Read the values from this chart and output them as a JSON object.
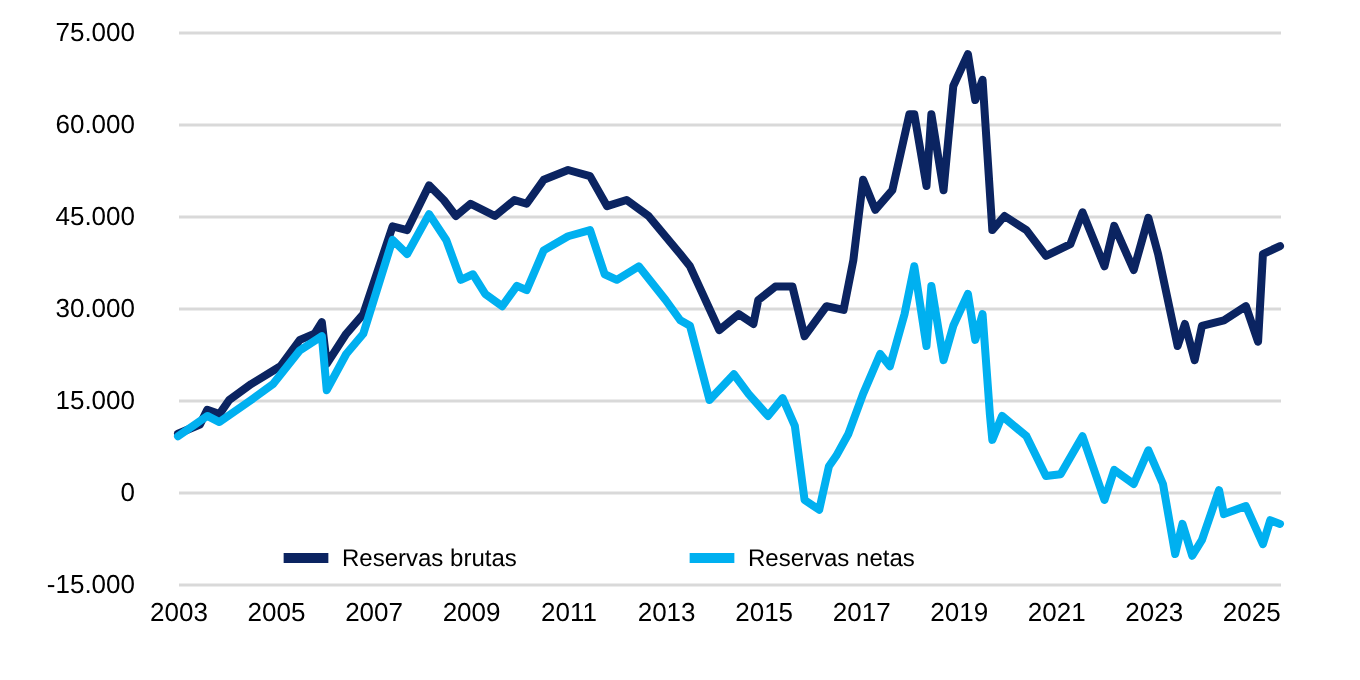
{
  "chart_data": {
    "type": "line",
    "series": [
      {
        "name": "Reservas brutas",
        "color": "#0b2461",
        "x": [
          2003.0,
          2003.45,
          2003.6,
          2003.85,
          2004.05,
          2004.5,
          2005.1,
          2005.5,
          2005.8,
          2005.95,
          2006.05,
          2006.45,
          2006.8,
          2007.4,
          2007.7,
          2008.15,
          2008.45,
          2008.7,
          2009.0,
          2009.5,
          2009.9,
          2010.15,
          2010.5,
          2011.0,
          2011.45,
          2011.8,
          2012.2,
          2012.65,
          2013.3,
          2013.5,
          2014.1,
          2014.5,
          2014.8,
          2014.9,
          2015.25,
          2015.6,
          2015.85,
          2016.3,
          2016.65,
          2016.85,
          2017.05,
          2017.3,
          2017.65,
          2018.0,
          2018.1,
          2018.35,
          2018.45,
          2018.7,
          2018.9,
          2019.2,
          2019.35,
          2019.5,
          2019.7,
          2019.95,
          2020.4,
          2020.8,
          2021.3,
          2021.55,
          2022.0,
          2022.2,
          2022.6,
          2022.9,
          2023.1,
          2023.5,
          2023.65,
          2023.85,
          2024.0,
          2024.45,
          2024.9,
          2025.15,
          2025.25,
          2025.6
        ],
        "values": [
          9500,
          11000,
          13400,
          12700,
          15000,
          17600,
          20500,
          24800,
          25800,
          27700,
          20900,
          25800,
          29000,
          43300,
          42700,
          50000,
          47600,
          45000,
          47000,
          45000,
          47600,
          47000,
          50900,
          52500,
          51500,
          46600,
          47600,
          45000,
          38800,
          36800,
          26400,
          29000,
          27400,
          31300,
          33500,
          33500,
          25400,
          30300,
          29700,
          37800,
          50900,
          46000,
          49200,
          61600,
          61600,
          49900,
          61600,
          49200,
          66200,
          71400,
          63900,
          67200,
          42700,
          45000,
          42700,
          38500,
          40400,
          45600,
          36800,
          43400,
          36200,
          44700,
          38800,
          23800,
          27400,
          21500,
          27100,
          28000,
          30300,
          24500,
          38800,
          40100
        ]
      },
      {
        "name": "Reservas netas",
        "color": "#00b0f0",
        "x": [
          2003.0,
          2003.6,
          2003.85,
          2004.5,
          2004.95,
          2005.5,
          2005.95,
          2006.05,
          2006.45,
          2006.8,
          2007.4,
          2007.7,
          2008.15,
          2008.5,
          2008.8,
          2009.05,
          2009.3,
          2009.65,
          2009.95,
          2010.15,
          2010.5,
          2011.0,
          2011.45,
          2011.75,
          2012.0,
          2012.45,
          2013.0,
          2013.3,
          2013.5,
          2013.9,
          2014.4,
          2014.7,
          2015.1,
          2015.4,
          2015.65,
          2015.85,
          2016.15,
          2016.35,
          2016.5,
          2016.75,
          2017.05,
          2017.4,
          2017.6,
          2017.9,
          2018.1,
          2018.35,
          2018.45,
          2018.7,
          2018.9,
          2019.2,
          2019.35,
          2019.5,
          2019.65,
          2019.7,
          2019.9,
          2020.4,
          2020.8,
          2021.1,
          2021.55,
          2022.0,
          2022.2,
          2022.6,
          2022.9,
          2023.2,
          2023.45,
          2023.6,
          2023.8,
          2024.0,
          2024.35,
          2024.45,
          2024.9,
          2025.25,
          2025.4,
          2025.6
        ],
        "values": [
          9100,
          12400,
          11400,
          15000,
          17600,
          23100,
          25400,
          16600,
          22500,
          25800,
          41100,
          38800,
          45300,
          41100,
          34600,
          35500,
          32300,
          30300,
          33600,
          32900,
          39400,
          41700,
          42700,
          35500,
          34600,
          36800,
          31300,
          28000,
          27100,
          15000,
          19200,
          16000,
          12400,
          15300,
          10800,
          -1300,
          -2900,
          4200,
          5900,
          9500,
          16000,
          22500,
          20500,
          29000,
          36800,
          23800,
          33600,
          21500,
          27100,
          32300,
          24800,
          29000,
          12700,
          8500,
          12400,
          9100,
          2600,
          2900,
          9100,
          -1300,
          3600,
          1300,
          6800,
          1300,
          -10100,
          -5200,
          -10400,
          -7800,
          300,
          -3600,
          -2300,
          -8500,
          -4600,
          -5200
        ]
      }
    ],
    "xlim": [
      2003,
      2025.6
    ],
    "xticks": [
      2003,
      2005,
      2007,
      2009,
      2011,
      2013,
      2015,
      2017,
      2019,
      2021,
      2023,
      2025
    ],
    "ylim": [
      -15000,
      75000
    ],
    "yticks": [
      {
        "value": -15000,
        "label": "-15.000"
      },
      {
        "value": 0,
        "label": "0"
      },
      {
        "value": 15000,
        "label": "15.000"
      },
      {
        "value": 30000,
        "label": "30.000"
      },
      {
        "value": 45000,
        "label": "45.000"
      },
      {
        "value": 60000,
        "label": "60.000"
      },
      {
        "value": 75000,
        "label": "75.000"
      }
    ],
    "grid": "y",
    "legend": "bottom",
    "line_style": "solid"
  }
}
